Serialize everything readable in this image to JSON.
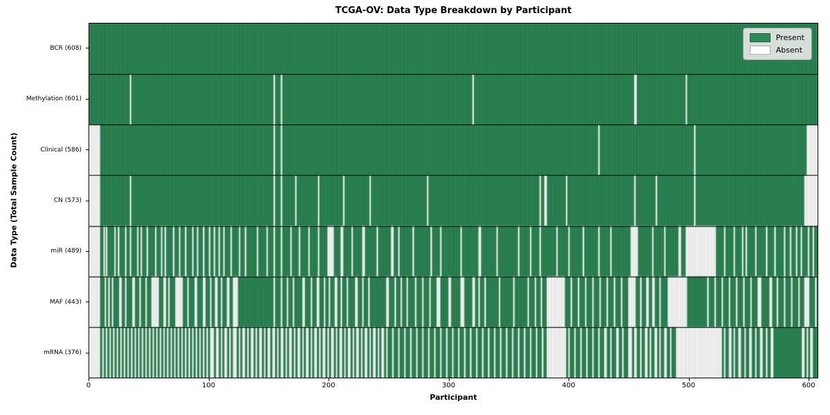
{
  "chart_data": {
    "type": "heatmap",
    "title": "TCGA-OV: Data Type Breakdown by Participant",
    "xlabel": "Participant",
    "ylabel": "Data Type (Total Sample Count)",
    "x_ticks": [
      0,
      100,
      200,
      300,
      400,
      500,
      600
    ],
    "n_participants": 608,
    "grid": false,
    "legend_position": "upper right",
    "colors": {
      "present": "#2e8b57",
      "absent": "#ffffff",
      "present_edge": "#1d5c39",
      "absent_edge": "#bdbdbd",
      "row_separator": "#000000",
      "frame": "#000000"
    },
    "legend": {
      "items": [
        {
          "label": "Present",
          "color": "#2e8b57"
        },
        {
          "label": "Absent",
          "color": "#ffffff"
        }
      ]
    },
    "rows": [
      {
        "label": "BCR (608)",
        "name": "BCR",
        "present_count": 608,
        "absent_segments": []
      },
      {
        "label": "Methylation (601)",
        "name": "Methylation",
        "present_count": 601,
        "absent_segments": [
          [
            34,
            1
          ],
          [
            154,
            1
          ],
          [
            160,
            1
          ],
          [
            320,
            1
          ],
          [
            455,
            2
          ],
          [
            498,
            1
          ]
        ]
      },
      {
        "label": "Clinical (586)",
        "name": "Clinical",
        "present_count": 586,
        "absent_segments": [
          [
            0,
            9
          ],
          [
            154,
            1
          ],
          [
            160,
            1
          ],
          [
            425,
            1
          ],
          [
            505,
            1
          ],
          [
            599,
            9
          ]
        ]
      },
      {
        "label": "CN (573)",
        "name": "CN",
        "present_count": 573,
        "absent_segments": [
          [
            0,
            9
          ],
          [
            34,
            1
          ],
          [
            154,
            1
          ],
          [
            160,
            1
          ],
          [
            172,
            1
          ],
          [
            191,
            1
          ],
          [
            212,
            1
          ],
          [
            234,
            1
          ],
          [
            282,
            1
          ],
          [
            376,
            1
          ],
          [
            380,
            2
          ],
          [
            398,
            1
          ],
          [
            455,
            1
          ],
          [
            473,
            1
          ],
          [
            505,
            1
          ],
          [
            597,
            11
          ]
        ]
      },
      {
        "label": "miR (489)",
        "name": "miR",
        "present_count": 489,
        "absent_segments": [
          [
            0,
            9
          ],
          [
            12,
            1
          ],
          [
            14,
            1
          ],
          [
            21,
            1
          ],
          [
            24,
            1
          ],
          [
            30,
            1
          ],
          [
            34,
            1
          ],
          [
            40,
            1
          ],
          [
            43,
            1
          ],
          [
            48,
            1
          ],
          [
            55,
            1
          ],
          [
            60,
            1
          ],
          [
            63,
            1
          ],
          [
            70,
            1
          ],
          [
            75,
            1
          ],
          [
            80,
            1
          ],
          [
            86,
            1
          ],
          [
            90,
            1
          ],
          [
            95,
            1
          ],
          [
            100,
            1
          ],
          [
            104,
            1
          ],
          [
            108,
            1
          ],
          [
            112,
            1
          ],
          [
            118,
            1
          ],
          [
            125,
            1
          ],
          [
            130,
            1
          ],
          [
            140,
            1
          ],
          [
            148,
            1
          ],
          [
            154,
            1
          ],
          [
            160,
            1
          ],
          [
            168,
            1
          ],
          [
            175,
            1
          ],
          [
            183,
            1
          ],
          [
            191,
            1
          ],
          [
            199,
            5
          ],
          [
            210,
            2
          ],
          [
            219,
            1
          ],
          [
            228,
            2
          ],
          [
            240,
            1
          ],
          [
            252,
            2
          ],
          [
            258,
            1
          ],
          [
            270,
            1
          ],
          [
            285,
            1
          ],
          [
            293,
            1
          ],
          [
            310,
            1
          ],
          [
            325,
            2
          ],
          [
            340,
            1
          ],
          [
            358,
            1
          ],
          [
            368,
            1
          ],
          [
            376,
            1
          ],
          [
            390,
            1
          ],
          [
            400,
            1
          ],
          [
            412,
            1
          ],
          [
            425,
            1
          ],
          [
            435,
            1
          ],
          [
            452,
            6
          ],
          [
            470,
            1
          ],
          [
            480,
            1
          ],
          [
            492,
            2
          ],
          [
            498,
            25
          ],
          [
            530,
            1
          ],
          [
            538,
            1
          ],
          [
            545,
            1
          ],
          [
            548,
            1
          ],
          [
            556,
            1
          ],
          [
            565,
            1
          ],
          [
            572,
            1
          ],
          [
            580,
            1
          ],
          [
            585,
            1
          ],
          [
            590,
            1
          ],
          [
            594,
            1
          ],
          [
            600,
            1
          ],
          [
            604,
            1
          ]
        ]
      },
      {
        "label": "MAF (443)",
        "name": "MAF",
        "present_count": 443,
        "absent_segments": [
          [
            0,
            9
          ],
          [
            13,
            1
          ],
          [
            16,
            1
          ],
          [
            19,
            1
          ],
          [
            25,
            2
          ],
          [
            30,
            1
          ],
          [
            36,
            2
          ],
          [
            42,
            1
          ],
          [
            47,
            1
          ],
          [
            52,
            6
          ],
          [
            62,
            2
          ],
          [
            66,
            1
          ],
          [
            72,
            6
          ],
          [
            82,
            1
          ],
          [
            88,
            2
          ],
          [
            95,
            2
          ],
          [
            101,
            1
          ],
          [
            105,
            2
          ],
          [
            110,
            1
          ],
          [
            115,
            2
          ],
          [
            120,
            4
          ],
          [
            154,
            1
          ],
          [
            160,
            1
          ],
          [
            165,
            1
          ],
          [
            170,
            1
          ],
          [
            178,
            2
          ],
          [
            185,
            1
          ],
          [
            190,
            2
          ],
          [
            196,
            1
          ],
          [
            200,
            1
          ],
          [
            205,
            2
          ],
          [
            210,
            1
          ],
          [
            215,
            1
          ],
          [
            222,
            2
          ],
          [
            228,
            1
          ],
          [
            233,
            1
          ],
          [
            248,
            2
          ],
          [
            255,
            1
          ],
          [
            260,
            1
          ],
          [
            265,
            1
          ],
          [
            272,
            1
          ],
          [
            278,
            1
          ],
          [
            284,
            1
          ],
          [
            290,
            3
          ],
          [
            300,
            2
          ],
          [
            310,
            3
          ],
          [
            320,
            2
          ],
          [
            325,
            1
          ],
          [
            330,
            1
          ],
          [
            342,
            1
          ],
          [
            354,
            1
          ],
          [
            366,
            1
          ],
          [
            372,
            1
          ],
          [
            377,
            1
          ],
          [
            382,
            15
          ],
          [
            402,
            1
          ],
          [
            408,
            1
          ],
          [
            414,
            1
          ],
          [
            420,
            1
          ],
          [
            426,
            1
          ],
          [
            432,
            1
          ],
          [
            438,
            1
          ],
          [
            444,
            1
          ],
          [
            450,
            6
          ],
          [
            460,
            1
          ],
          [
            465,
            2
          ],
          [
            470,
            2
          ],
          [
            476,
            1
          ],
          [
            483,
            16
          ],
          [
            516,
            1
          ],
          [
            522,
            1
          ],
          [
            528,
            1
          ],
          [
            534,
            1
          ],
          [
            540,
            1
          ],
          [
            546,
            1
          ],
          [
            552,
            1
          ],
          [
            558,
            3
          ],
          [
            568,
            2
          ],
          [
            574,
            1
          ],
          [
            580,
            1
          ],
          [
            586,
            1
          ],
          [
            592,
            1
          ],
          [
            597,
            4
          ],
          [
            606,
            1
          ]
        ]
      },
      {
        "label": "mRNA (376)",
        "name": "mRNA",
        "present_count": 376,
        "absent_segments": [
          [
            0,
            9
          ],
          [
            11,
            1
          ],
          [
            14,
            1
          ],
          [
            17,
            1
          ],
          [
            20,
            1
          ],
          [
            23,
            1
          ],
          [
            26,
            1
          ],
          [
            29,
            1
          ],
          [
            32,
            1
          ],
          [
            35,
            1
          ],
          [
            38,
            1
          ],
          [
            41,
            1
          ],
          [
            44,
            1
          ],
          [
            47,
            1
          ],
          [
            50,
            1
          ],
          [
            53,
            1
          ],
          [
            56,
            1
          ],
          [
            59,
            1
          ],
          [
            62,
            1
          ],
          [
            65,
            1
          ],
          [
            68,
            1
          ],
          [
            71,
            1
          ],
          [
            74,
            1
          ],
          [
            77,
            1
          ],
          [
            80,
            1
          ],
          [
            83,
            1
          ],
          [
            86,
            1
          ],
          [
            89,
            1
          ],
          [
            92,
            1
          ],
          [
            95,
            1
          ],
          [
            98,
            1
          ],
          [
            101,
            3
          ],
          [
            106,
            2
          ],
          [
            110,
            1
          ],
          [
            113,
            2
          ],
          [
            117,
            1
          ],
          [
            120,
            3
          ],
          [
            125,
            1
          ],
          [
            128,
            2
          ],
          [
            132,
            1
          ],
          [
            135,
            2
          ],
          [
            139,
            1
          ],
          [
            142,
            2
          ],
          [
            146,
            1
          ],
          [
            149,
            2
          ],
          [
            153,
            2
          ],
          [
            157,
            1
          ],
          [
            160,
            2
          ],
          [
            164,
            1
          ],
          [
            167,
            2
          ],
          [
            171,
            1
          ],
          [
            174,
            2
          ],
          [
            178,
            1
          ],
          [
            181,
            2
          ],
          [
            185,
            1
          ],
          [
            188,
            2
          ],
          [
            192,
            1
          ],
          [
            195,
            2
          ],
          [
            199,
            1
          ],
          [
            202,
            2
          ],
          [
            206,
            1
          ],
          [
            209,
            2
          ],
          [
            213,
            1
          ],
          [
            216,
            2
          ],
          [
            220,
            1
          ],
          [
            223,
            2
          ],
          [
            227,
            1
          ],
          [
            230,
            2
          ],
          [
            234,
            1
          ],
          [
            237,
            2
          ],
          [
            241,
            1
          ],
          [
            244,
            2
          ],
          [
            248,
            1
          ],
          [
            253,
            1
          ],
          [
            258,
            1
          ],
          [
            263,
            1
          ],
          [
            268,
            1
          ],
          [
            273,
            1
          ],
          [
            278,
            1
          ],
          [
            283,
            1
          ],
          [
            288,
            1
          ],
          [
            293,
            1
          ],
          [
            298,
            1
          ],
          [
            303,
            1
          ],
          [
            308,
            1
          ],
          [
            313,
            1
          ],
          [
            318,
            1
          ],
          [
            323,
            1
          ],
          [
            328,
            1
          ],
          [
            333,
            1
          ],
          [
            338,
            1
          ],
          [
            343,
            1
          ],
          [
            348,
            1
          ],
          [
            353,
            1
          ],
          [
            358,
            1
          ],
          [
            363,
            1
          ],
          [
            368,
            1
          ],
          [
            373,
            1
          ],
          [
            378,
            1
          ],
          [
            382,
            16
          ],
          [
            400,
            1
          ],
          [
            405,
            1
          ],
          [
            410,
            1
          ],
          [
            415,
            1
          ],
          [
            420,
            1
          ],
          [
            425,
            1
          ],
          [
            430,
            2
          ],
          [
            435,
            1
          ],
          [
            440,
            2
          ],
          [
            445,
            1
          ],
          [
            450,
            3
          ],
          [
            455,
            2
          ],
          [
            460,
            1
          ],
          [
            464,
            2
          ],
          [
            468,
            1
          ],
          [
            472,
            2
          ],
          [
            476,
            1
          ],
          [
            480,
            2
          ],
          [
            485,
            1
          ],
          [
            490,
            38
          ],
          [
            530,
            1
          ],
          [
            534,
            2
          ],
          [
            538,
            1
          ],
          [
            542,
            2
          ],
          [
            547,
            1
          ],
          [
            551,
            2
          ],
          [
            556,
            1
          ],
          [
            560,
            2
          ],
          [
            565,
            1
          ],
          [
            569,
            2
          ],
          [
            595,
            2
          ],
          [
            599,
            1
          ],
          [
            602,
            2
          ]
        ]
      }
    ]
  }
}
